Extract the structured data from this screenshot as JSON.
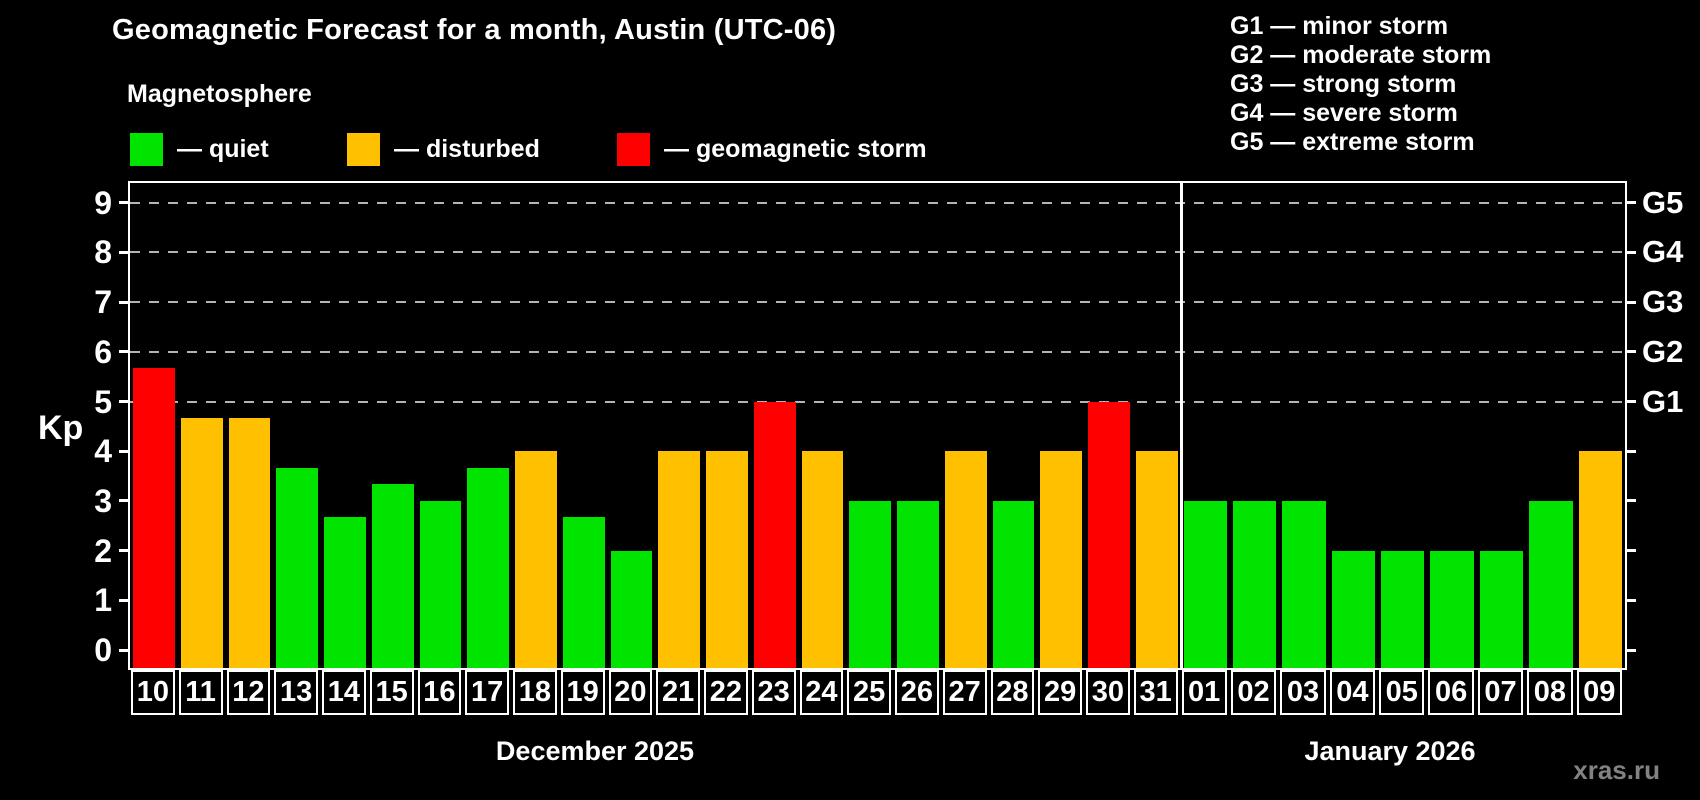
{
  "title": "Geomagnetic Forecast for a month, Austin (UTC-06)",
  "subtitle": "Magnetosphere",
  "legend": {
    "items": [
      {
        "key": "quiet",
        "color": "#00e400",
        "label": "— quiet"
      },
      {
        "key": "disturbed",
        "color": "#ffc000",
        "label": "— disturbed"
      },
      {
        "key": "storm",
        "color": "#ff0000",
        "label": "— geomagnetic storm"
      }
    ]
  },
  "g_legend": {
    "items": [
      "G1 — minor storm",
      "G2 — moderate storm",
      "G3 — strong storm",
      "G4 — severe storm",
      "G5 — extreme storm"
    ]
  },
  "watermark": "xras.ru",
  "chart_data": {
    "type": "bar",
    "title": "Geomagnetic Forecast for a month, Austin (UTC-06)",
    "ylabel": "Kp",
    "ylim": [
      -0.4,
      9.4
    ],
    "yticks": [
      0,
      1,
      2,
      3,
      4,
      5,
      6,
      7,
      8,
      9
    ],
    "gridlines_at": [
      5,
      6,
      7,
      8,
      9
    ],
    "grid": "dashed horizontal lines at storm levels G1–G5",
    "legend_position": "top",
    "colors": {
      "quiet": "#00e400",
      "disturbed": "#ffc000",
      "storm": "#ff0000"
    },
    "right_axis_labels": [
      {
        "kp": 5,
        "label": "G1"
      },
      {
        "kp": 6,
        "label": "G2"
      },
      {
        "kp": 7,
        "label": "G3"
      },
      {
        "kp": 8,
        "label": "G4"
      },
      {
        "kp": 9,
        "label": "G5"
      }
    ],
    "months": [
      {
        "label": "December 2025",
        "days": [
          "10",
          "11",
          "12",
          "13",
          "14",
          "15",
          "16",
          "17",
          "18",
          "19",
          "20",
          "21",
          "22",
          "23",
          "24",
          "25",
          "26",
          "27",
          "28",
          "29",
          "30",
          "31"
        ],
        "values": [
          5.67,
          4.67,
          4.67,
          3.67,
          2.67,
          3.33,
          3,
          3.67,
          4,
          2.67,
          2,
          4,
          4,
          5,
          4,
          3,
          3,
          4,
          3,
          4,
          5,
          4
        ],
        "levels": [
          "storm",
          "disturbed",
          "disturbed",
          "quiet",
          "quiet",
          "quiet",
          "quiet",
          "quiet",
          "disturbed",
          "quiet",
          "quiet",
          "disturbed",
          "disturbed",
          "storm",
          "disturbed",
          "quiet",
          "quiet",
          "disturbed",
          "quiet",
          "disturbed",
          "storm",
          "disturbed"
        ]
      },
      {
        "label": "January 2026",
        "days": [
          "01",
          "02",
          "03",
          "04",
          "05",
          "06",
          "07",
          "08",
          "09"
        ],
        "values": [
          3,
          3,
          3,
          2,
          2,
          2,
          2,
          3,
          4
        ],
        "levels": [
          "quiet",
          "quiet",
          "quiet",
          "quiet",
          "quiet",
          "quiet",
          "quiet",
          "quiet",
          "disturbed"
        ]
      }
    ]
  }
}
